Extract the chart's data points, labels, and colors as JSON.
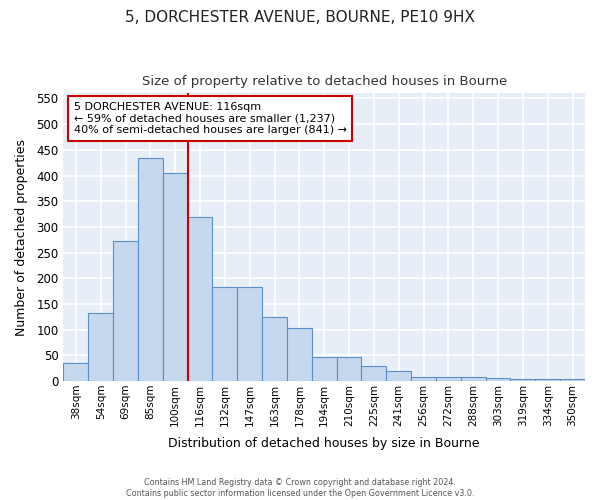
{
  "title": "5, DORCHESTER AVENUE, BOURNE, PE10 9HX",
  "subtitle": "Size of property relative to detached houses in Bourne",
  "xlabel": "Distribution of detached houses by size in Bourne",
  "ylabel": "Number of detached properties",
  "categories": [
    "38sqm",
    "54sqm",
    "69sqm",
    "85sqm",
    "100sqm",
    "116sqm",
    "132sqm",
    "147sqm",
    "163sqm",
    "178sqm",
    "194sqm",
    "210sqm",
    "225sqm",
    "241sqm",
    "256sqm",
    "272sqm",
    "288sqm",
    "303sqm",
    "319sqm",
    "334sqm",
    "350sqm"
  ],
  "values": [
    35,
    133,
    272,
    435,
    405,
    320,
    183,
    182,
    125,
    103,
    46,
    46,
    29,
    20,
    8,
    7,
    8,
    5,
    4,
    4,
    4
  ],
  "bar_color": "#c5d8ee",
  "bar_edge_color": "#5b8fc9",
  "vline_color": "#cc0000",
  "annotation_text": "5 DORCHESTER AVENUE: 116sqm\n← 59% of detached houses are smaller (1,237)\n40% of semi-detached houses are larger (841) →",
  "annotation_box_color": "#ffffff",
  "annotation_box_edge": "#cc0000",
  "ylim": [
    0,
    560
  ],
  "yticks": [
    0,
    50,
    100,
    150,
    200,
    250,
    300,
    350,
    400,
    450,
    500,
    550
  ],
  "bg_color": "#e8eef8",
  "fig_bg_color": "#ffffff",
  "grid_color": "#ffffff",
  "footer1": "Contains HM Land Registry data © Crown copyright and database right 2024.",
  "footer2": "Contains public sector information licensed under the Open Government Licence v3.0."
}
